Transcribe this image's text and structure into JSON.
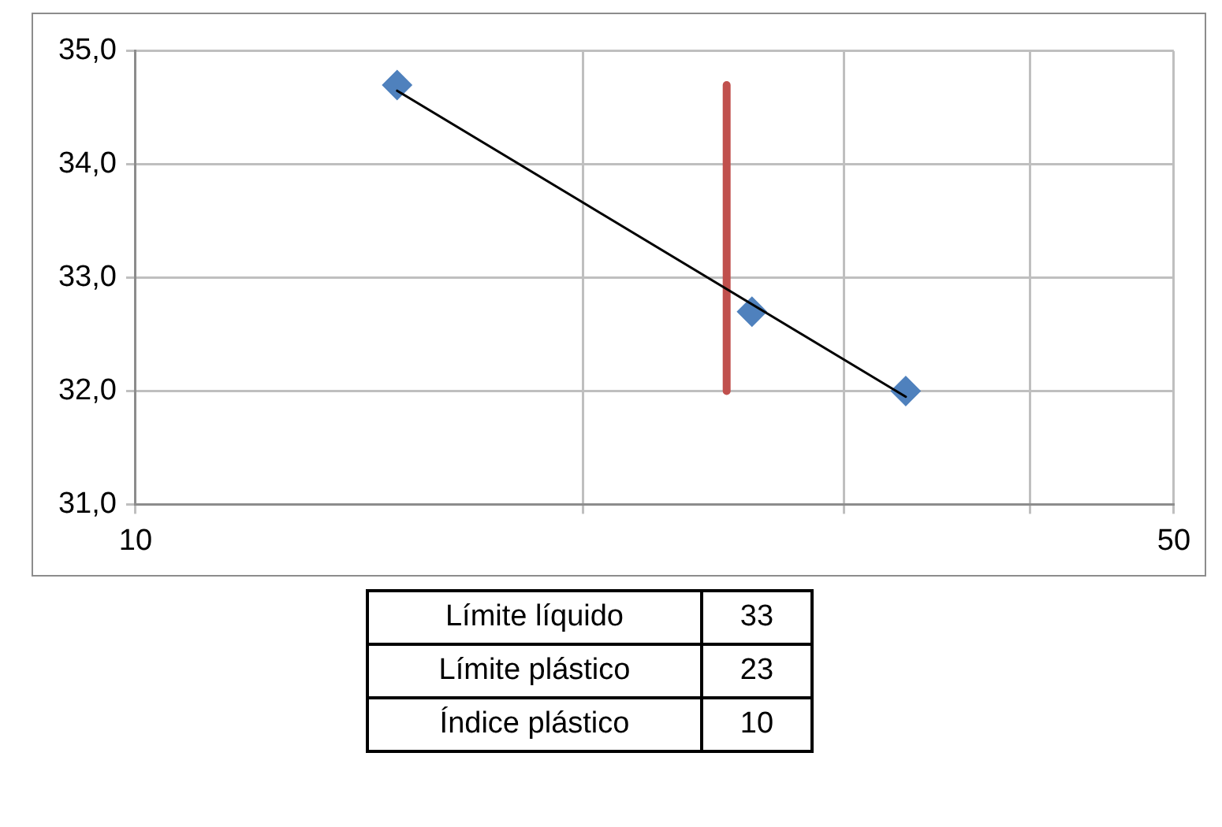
{
  "chart_data": {
    "type": "scatter",
    "log": "x",
    "xlim": [
      10,
      50
    ],
    "xticks": [
      10,
      {
        "value": 20,
        "label": null
      },
      {
        "value": 30,
        "label": null
      },
      {
        "value": 40,
        "label": null
      },
      50
    ],
    "ylim": [
      31,
      35
    ],
    "yticks": [
      {
        "value": 31,
        "label": "31,0"
      },
      {
        "value": 32,
        "label": "32,0"
      },
      {
        "value": 33,
        "label": "33,0"
      },
      {
        "value": 34,
        "label": "34,0"
      },
      {
        "value": 35,
        "label": "35,0"
      }
    ],
    "grid": true,
    "legend": false,
    "series": [
      {
        "type": "scatter",
        "color": "#4f81bd",
        "marker": "diamond",
        "x": [
          15,
          26,
          33
        ],
        "values": [
          34.7,
          32.7,
          32.0
        ]
      },
      {
        "type": "line",
        "color": "#000000",
        "marker": "none",
        "line_style": "solid",
        "x": [
          15,
          33
        ],
        "values": [
          34.65,
          31.95
        ]
      },
      {
        "type": "line",
        "color": "#c0504d",
        "marker": "none",
        "line_style": "solid",
        "x": [
          25,
          25
        ],
        "values": [
          32.0,
          34.7
        ]
      }
    ],
    "annotations": [
      "Límite líquido",
      "33",
      "Límite plástico",
      "23",
      "Índice plástico",
      "10"
    ]
  }
}
